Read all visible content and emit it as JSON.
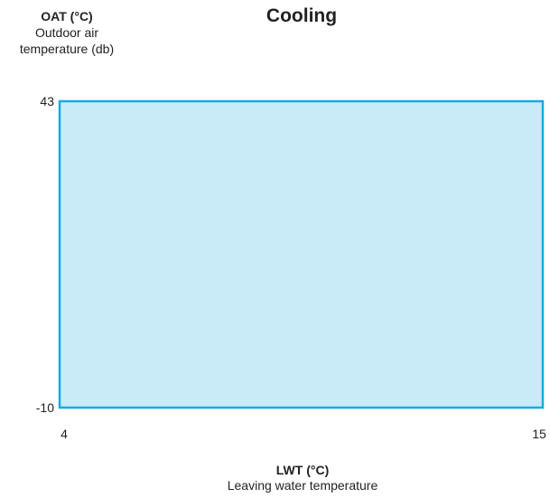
{
  "chart_data": {
    "type": "area",
    "title": "Cooling",
    "ylabel": {
      "main": "OAT (°C)",
      "line2": "Outdoor air",
      "line3": "temperature (db)"
    },
    "xlabel": {
      "main": "LWT (°C)",
      "line2": "Leaving water temperature"
    },
    "xlim": [
      4,
      15
    ],
    "ylim": [
      -10,
      43
    ],
    "xticks": [
      "4",
      "15"
    ],
    "yticks": [
      "43",
      "-10"
    ],
    "region": {
      "x_min": 4,
      "x_max": 15,
      "y_min": -10,
      "y_max": 43
    },
    "fill_color": "#c8eaf9",
    "border_color": "#1aa9e1",
    "grid": false,
    "legend": "none"
  }
}
